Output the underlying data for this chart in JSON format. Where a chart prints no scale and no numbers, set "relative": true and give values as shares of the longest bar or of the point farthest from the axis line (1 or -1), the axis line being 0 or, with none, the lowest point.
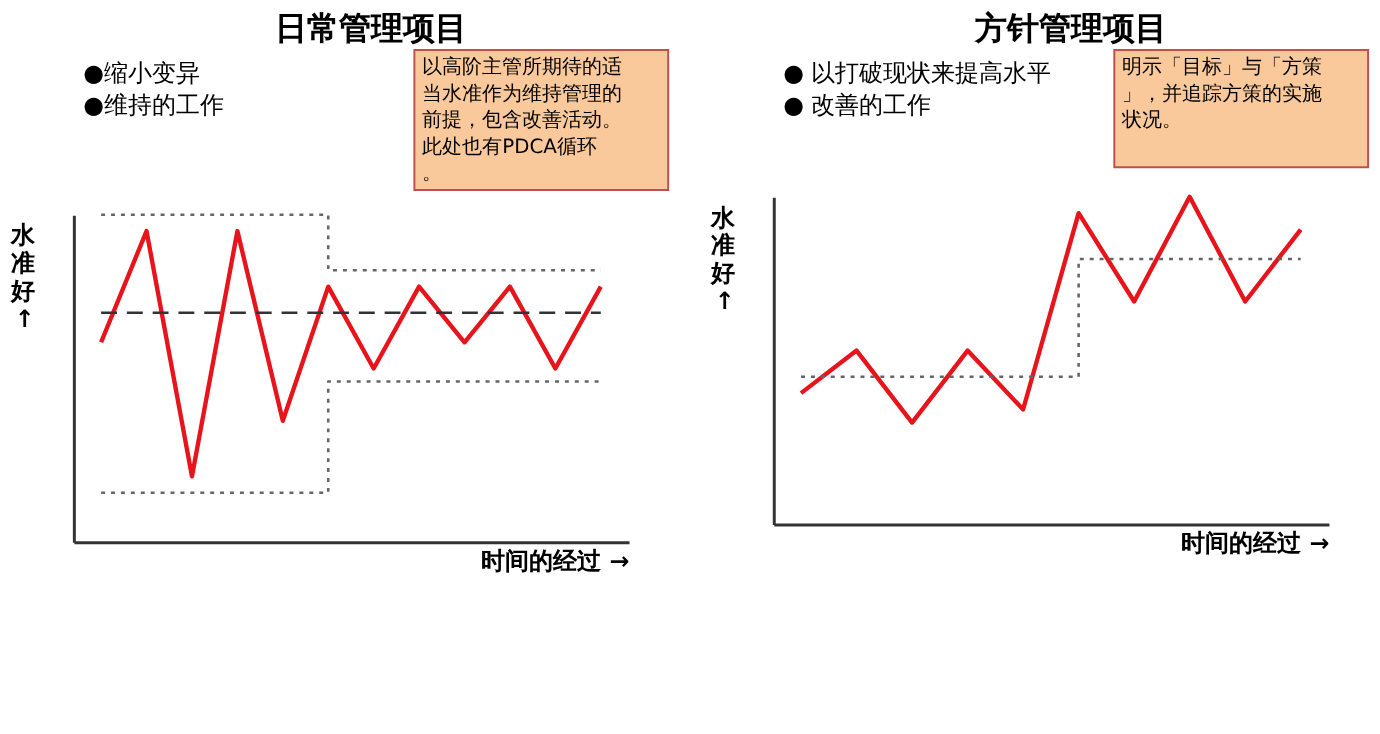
{
  "chart_data": [
    {
      "type": "line",
      "title": "日常管理项目",
      "relative": true,
      "legend": false,
      "grid": false,
      "xlabel": "时间的经过 →",
      "ylabel": "水准好↑",
      "annotations": [
        "●缩小变异",
        "●维持的工作",
        "以高阶主管所期待的适当水准作为维持管理的前提，包含改善活动。此处也有PDCA循环。"
      ],
      "categories": [
        null,
        null,
        null,
        null,
        null,
        null,
        null,
        null,
        null,
        null,
        null,
        null
      ],
      "series": [
        {
          "type": "line",
          "color": "#e8141c",
          "line_style": "solid",
          "values": [
            0.61,
            0.95,
            0.2,
            0.95,
            0.37,
            0.78,
            0.53,
            0.78,
            0.61,
            0.78,
            0.53,
            0.78
          ]
        },
        {
          "type": "line",
          "color": "#333333",
          "line_style": "dashed",
          "values": [
            0.7,
            0.7,
            0.7,
            0.7,
            0.7,
            0.7,
            0.7,
            0.7,
            0.7,
            0.7,
            0.7,
            0.7
          ]
        },
        {
          "type": "step",
          "color": "#666666",
          "line_style": "dotted",
          "values": [
            1,
            1,
            1,
            1,
            1,
            0.83,
            0.83,
            0.83,
            0.83,
            0.83,
            0.83,
            0.83
          ]
        },
        {
          "type": "step",
          "color": "#666666",
          "line_style": "dotted",
          "values": [
            0.15,
            0.15,
            0.15,
            0.15,
            0.15,
            0.49,
            0.49,
            0.49,
            0.49,
            0.49,
            0.49,
            0.49
          ]
        }
      ]
    },
    {
      "type": "line",
      "title": "方针管理项目",
      "relative": true,
      "legend": false,
      "grid": false,
      "xlabel": "时间的经过 →",
      "ylabel": "水准好↑",
      "annotations": [
        "● 以打破现状来提高水平",
        "● 改善的工作",
        "明示「目标」与「方策」，并追踪方策的实施状况。"
      ],
      "categories": [
        null,
        null,
        null,
        null,
        null,
        null,
        null,
        null,
        null,
        null
      ],
      "series": [
        {
          "type": "line",
          "color": "#e8141c",
          "line_style": "solid",
          "values": [
            0.4,
            0.53,
            0.31,
            0.53,
            0.35,
            0.95,
            0.68,
            1,
            0.68,
            0.9
          ]
        },
        {
          "type": "step",
          "color": "#666666",
          "line_style": "dotted",
          "values": [
            0.45,
            0.45,
            0.45,
            0.45,
            0.45,
            0.81,
            0.81,
            0.81,
            0.81,
            0.81
          ]
        }
      ]
    }
  ]
}
